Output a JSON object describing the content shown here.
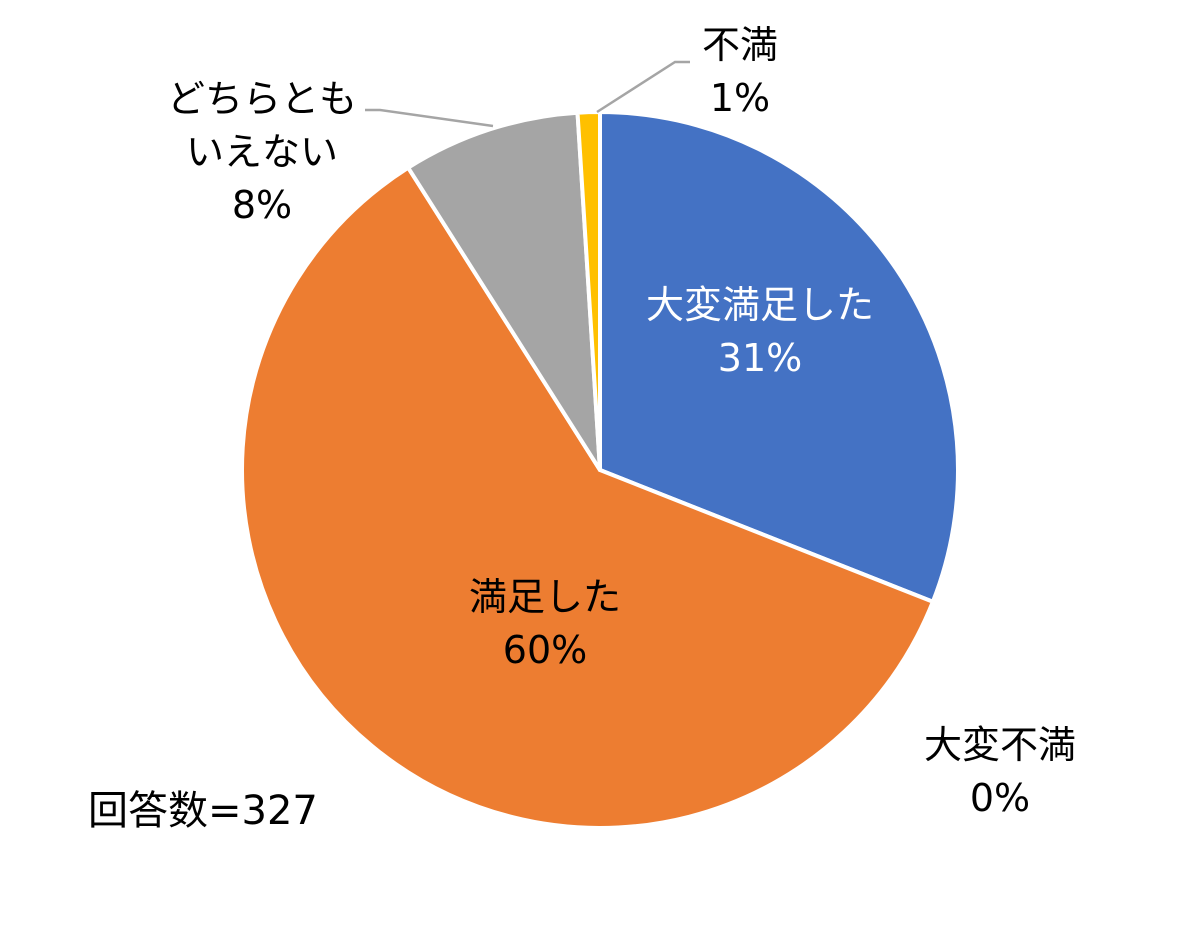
{
  "chart_data": {
    "type": "pie",
    "start_angle": "top",
    "direction": "clockwise",
    "categories": [
      "大変満足した",
      "大変不満",
      "満足した",
      "どちらともいえない",
      "不満"
    ],
    "values": [
      31,
      0,
      60,
      8,
      1
    ],
    "value_labels": [
      "31%",
      "0%",
      "60%",
      "8%",
      "1%"
    ],
    "label_lines": [
      [
        "大変満足した"
      ],
      [
        "大変不満"
      ],
      [
        "満足した"
      ],
      [
        "どちらとも",
        "いえない"
      ],
      [
        "不満"
      ]
    ],
    "colors": [
      "#4472C4",
      "#5B9BD5",
      "#ED7D31",
      "#A5A5A5",
      "#FFC000"
    ],
    "annotation": "回答数=327"
  }
}
